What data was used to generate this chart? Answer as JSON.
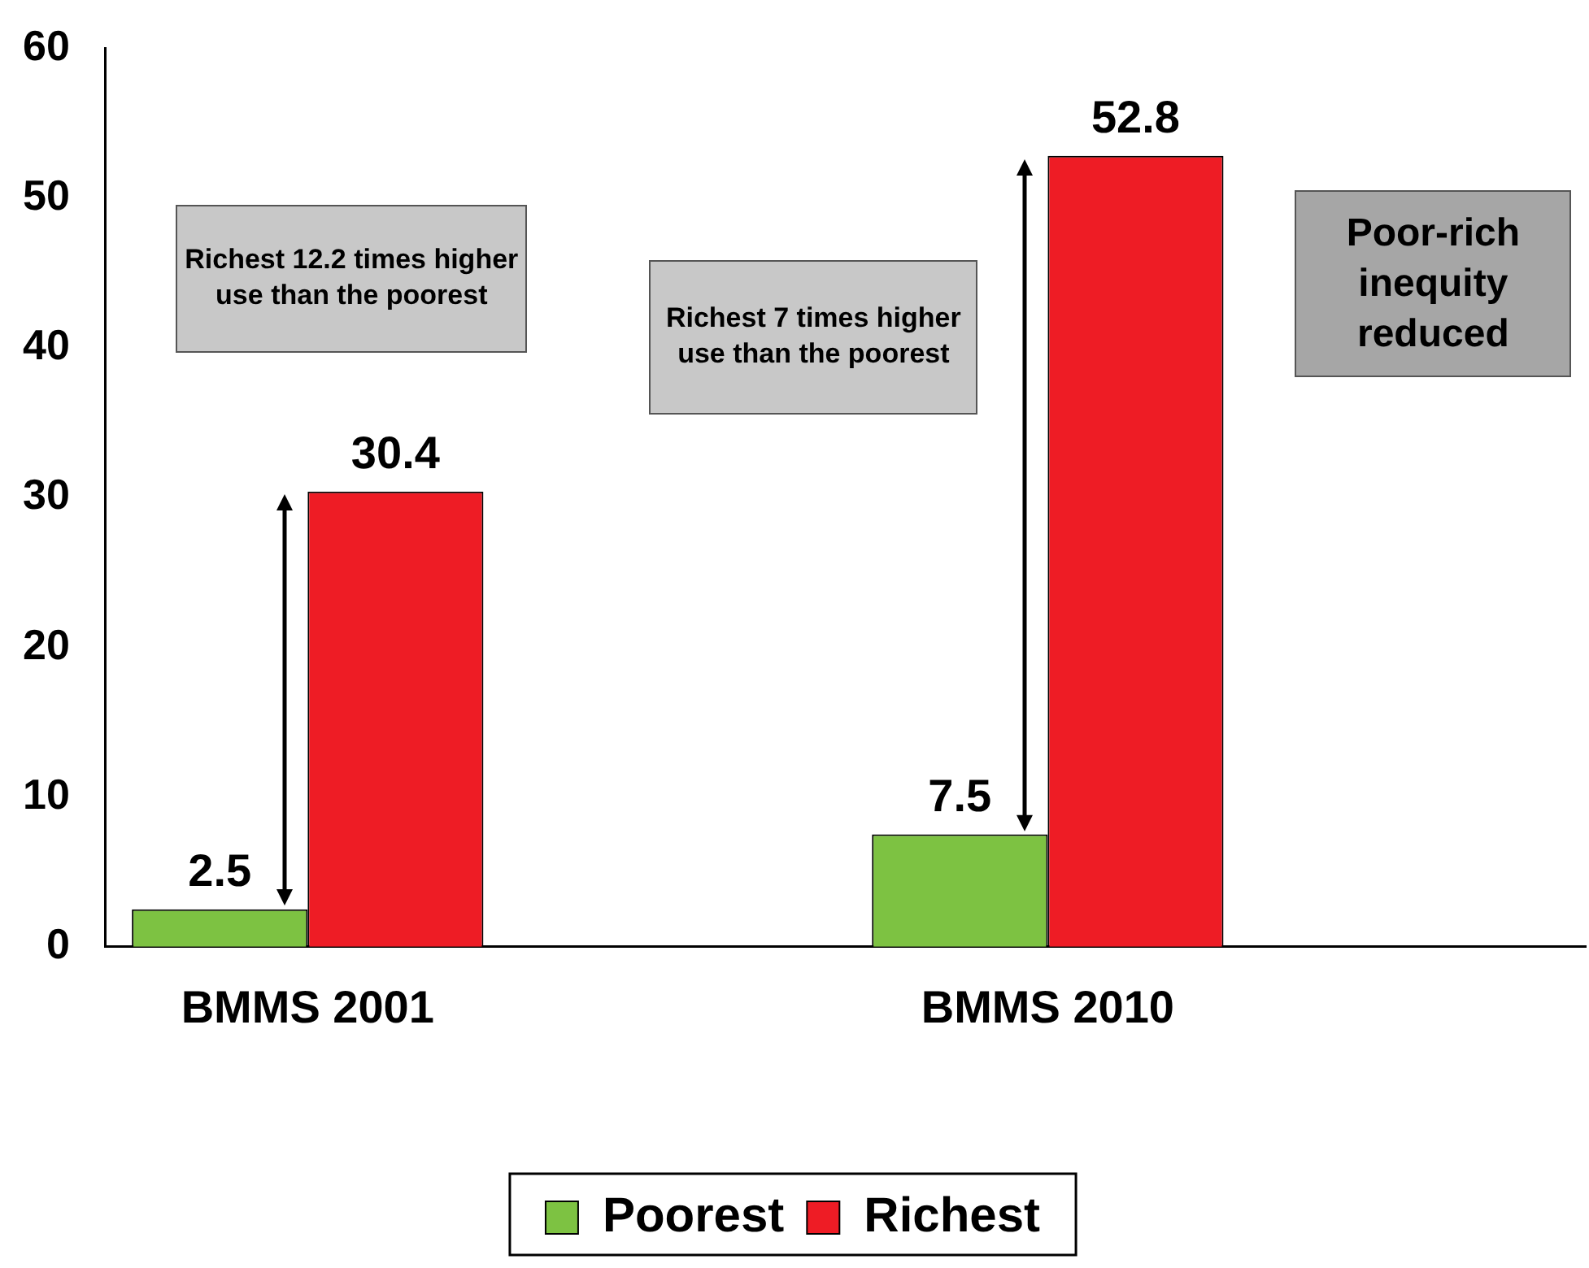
{
  "chart_data": {
    "type": "bar",
    "categories": [
      "BMMS 2001",
      "BMMS 2010"
    ],
    "series": [
      {
        "name": "Poorest",
        "color": "#7dc242",
        "values": [
          2.5,
          7.5
        ]
      },
      {
        "name": "Richest",
        "color": "#ee1c25",
        "values": [
          30.4,
          52.8
        ]
      }
    ],
    "ylim": [
      0,
      60
    ],
    "yticks": [
      0,
      10,
      20,
      30,
      40,
      50,
      60
    ],
    "grid": false,
    "legend": "bottom",
    "data_labels": true,
    "annotations": [
      "Richest 12.2 times higher use than the poorest",
      "Richest 7 times higher use than the poorest",
      "Poor-rich inequity reduced"
    ]
  }
}
